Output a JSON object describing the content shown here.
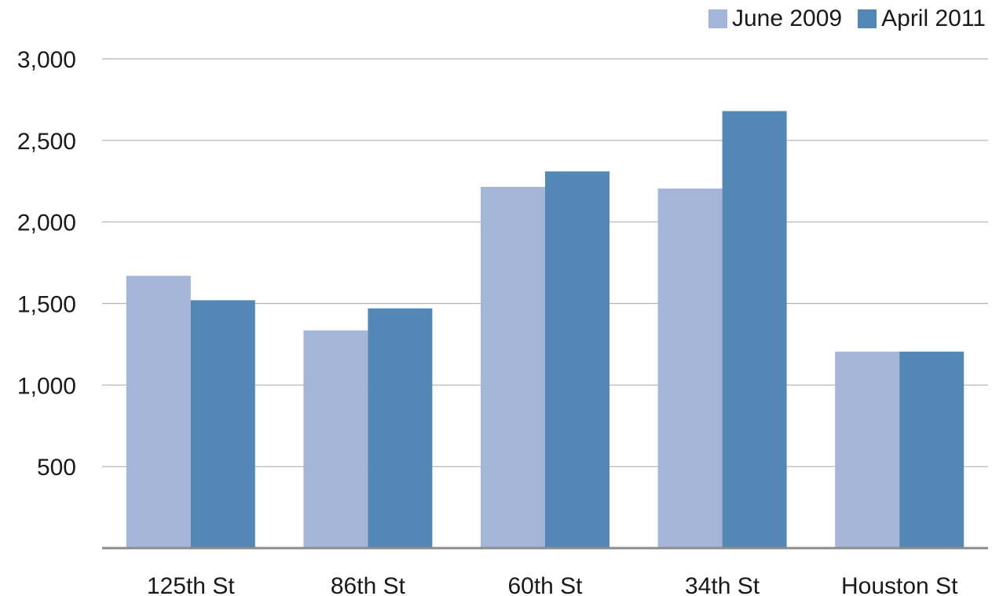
{
  "chart_data": {
    "type": "bar",
    "title": "",
    "xlabel": "",
    "ylabel": "",
    "categories": [
      "125th St",
      "86th St",
      "60th St",
      "34th St",
      "Houston St"
    ],
    "series": [
      {
        "name": "June 2009",
        "color": "#a3b6d7",
        "values": [
          1670,
          1335,
          2215,
          2205,
          1205
        ]
      },
      {
        "name": "April 2011",
        "color": "#5287b6",
        "values": [
          1520,
          1470,
          2310,
          2680,
          1205
        ]
      }
    ],
    "yticks": [
      500,
      1000,
      1500,
      2000,
      2500,
      3000
    ],
    "ytick_labels": [
      "500",
      "1,000",
      "1,500",
      "2,000",
      "2,500",
      "3,000"
    ],
    "ylim": [
      0,
      3000
    ],
    "grid": true,
    "legend_position": "top-right"
  },
  "colors": {
    "gridline": "#b3b3b3",
    "baseline": "#8c8c8c",
    "text": "#1a1a1a"
  }
}
